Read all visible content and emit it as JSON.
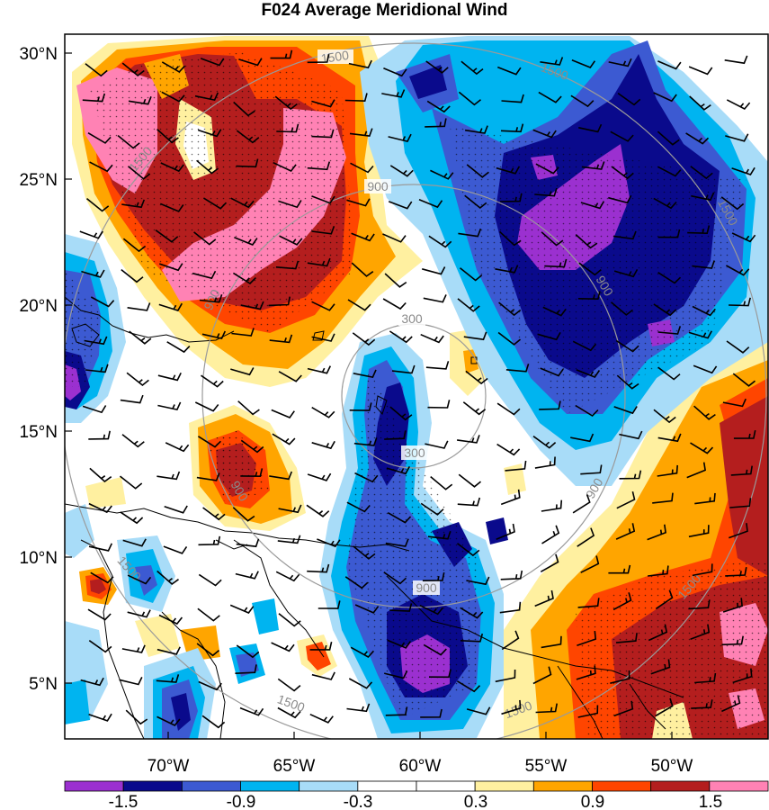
{
  "title": "F024 Average Meridional Wind",
  "lat_labels": [
    "30°N",
    "25°N",
    "20°N",
    "15°N",
    "10°N",
    "5°N"
  ],
  "lon_labels": [
    "70°W",
    "65°W",
    "60°W",
    "55°W",
    "50°W"
  ],
  "colorbar": {
    "colors": [
      "#9b30d0",
      "#0a0a8c",
      "#3c5ad2",
      "#00b4f0",
      "#a8dcf8",
      "#ffffff",
      "#ffffff",
      "#fff0a0",
      "#ffa500",
      "#ff4500",
      "#b41e1e",
      "#ff82b4"
    ],
    "labels": [
      "-1.5",
      "-0.9",
      "-0.3",
      "0.3",
      "0.9",
      "1.5"
    ]
  },
  "range_rings": [
    "300",
    "900",
    "1500"
  ],
  "colors": {
    "pink": "#ff82b4",
    "darkred": "#b41e1e",
    "orangered": "#ff4500",
    "orange": "#ffa500",
    "lightyellow": "#fff0a0",
    "white": "#ffffff",
    "lightblue": "#a8dcf8",
    "cyan": "#00b4f0",
    "medblue": "#3c5ad2",
    "navy": "#0a0a8c",
    "purple": "#9b30d0",
    "ring": "#9a9a9a"
  }
}
